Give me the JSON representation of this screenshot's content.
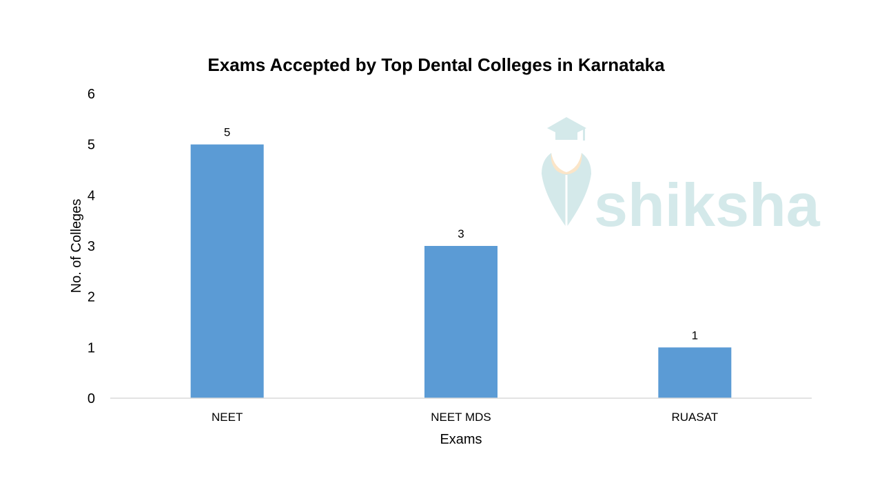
{
  "chart_data": {
    "type": "bar",
    "title": "Exams Accepted by Top Dental Colleges in Karnataka",
    "xlabel": "Exams",
    "ylabel": "No. of Colleges",
    "categories": [
      "NEET",
      "NEET MDS",
      "RUASAT"
    ],
    "values": [
      5,
      3,
      1
    ],
    "data_labels": [
      "5",
      "3",
      "1"
    ],
    "y_ticks": [
      "0",
      "1",
      "2",
      "3",
      "4",
      "5",
      "6"
    ],
    "ylim": [
      0,
      6
    ],
    "grid": false,
    "legend": "none",
    "bar_color": "#5b9bd5",
    "axis_color": "#d9d9d9"
  },
  "watermark": {
    "text": "shiksha",
    "color": "#d4e9ea",
    "accent_color": "#fbe5c8",
    "icon": "graduation-cap-icon"
  }
}
